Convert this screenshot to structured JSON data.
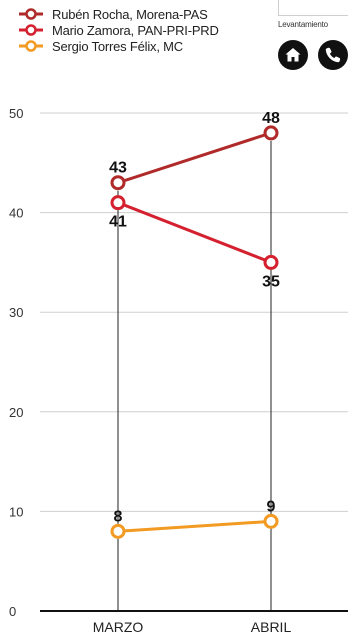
{
  "legend": [
    {
      "label": "Rubén Rocha, Morena-PAS",
      "color": "#b02a2a"
    },
    {
      "label": "Mario Zamora, PAN-PRI-PRD",
      "color": "#d4202f"
    },
    {
      "label": "Sergio Torres Félix, MC",
      "color": "#f29a22"
    }
  ],
  "header": {
    "levantamiento_label": "Levantamiento",
    "home_icon": "home-icon",
    "phone_icon": "phone-icon"
  },
  "chart_data": {
    "type": "line",
    "categories": [
      "MARZO",
      "ABRIL"
    ],
    "series": [
      {
        "name": "Rubén Rocha, Morena-PAS",
        "values": [
          43,
          48
        ],
        "color": "#b02a2a",
        "label_pos": [
          "above",
          "above"
        ]
      },
      {
        "name": "Mario Zamora, PAN-PRI-PRD",
        "values": [
          41,
          35
        ],
        "color": "#d4202f",
        "label_pos": [
          "below",
          "below"
        ]
      },
      {
        "name": "Sergio Torres Félix, MC",
        "values": [
          8,
          9
        ],
        "color": "#f29a22",
        "label_pos": [
          "above",
          "above"
        ]
      }
    ],
    "yticks": [
      0,
      10,
      20,
      30,
      40,
      50
    ],
    "ylim": [
      0,
      50
    ],
    "grid": true
  }
}
